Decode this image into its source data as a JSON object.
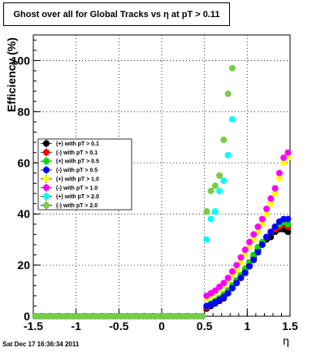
{
  "chart_data": {
    "type": "scatter",
    "title": "Ghost over all for Global Tracks vs η at pT > 0.11",
    "xlabel": "η",
    "ylabel": "Efficiency (%)",
    "xlim": [
      -1.5,
      1.5
    ],
    "ylim": [
      0,
      110
    ],
    "xticks": [
      "-1.5",
      "-1",
      "-0.5",
      "0",
      "0.5",
      "1",
      "1.5"
    ],
    "yticks": [
      "0",
      "20",
      "40",
      "60",
      "80",
      "100"
    ],
    "grid": true,
    "legend_position": "left-middle",
    "series": [
      {
        "name": "(+) with pT > 0.1",
        "color": "#000000",
        "x": [
          -1.475,
          -1.425,
          -1.375,
          -1.325,
          -1.275,
          -1.225,
          -1.175,
          -1.125,
          -1.075,
          -1.025,
          -0.975,
          -0.925,
          -0.875,
          -0.825,
          -0.775,
          -0.725,
          -0.675,
          -0.625,
          -0.575,
          -0.525,
          -0.475,
          -0.425,
          -0.375,
          -0.325,
          -0.275,
          -0.225,
          -0.175,
          -0.125,
          -0.075,
          -0.025,
          0.025,
          0.075,
          0.125,
          0.175,
          0.225,
          0.275,
          0.325,
          0.375,
          0.425,
          0.475,
          0.525,
          0.575,
          0.625,
          0.675,
          0.725,
          0.775,
          0.825,
          0.875,
          0.925,
          0.975,
          1.025,
          1.075,
          1.125,
          1.175,
          1.225,
          1.275,
          1.325,
          1.375,
          1.425,
          1.475
        ],
        "y": [
          0,
          0,
          0,
          0,
          0,
          0,
          0,
          0,
          0,
          0,
          0,
          0,
          0,
          0,
          0,
          0,
          0,
          0,
          0,
          0,
          0,
          0,
          0,
          0,
          0,
          0,
          0,
          0,
          0,
          0,
          0,
          0,
          0,
          0,
          0,
          0,
          0,
          0,
          0,
          0,
          3,
          4,
          5,
          6,
          7,
          9,
          11,
          13,
          15,
          17,
          20,
          23,
          26,
          28,
          30,
          31,
          33,
          34,
          34,
          33
        ]
      },
      {
        "name": "(-) with pT > 0.1",
        "color": "#ff0000",
        "x": [
          -1.475,
          -1.425,
          -1.375,
          -1.325,
          -1.275,
          -1.225,
          -1.175,
          -1.125,
          -1.075,
          -1.025,
          -0.975,
          -0.925,
          -0.875,
          -0.825,
          -0.775,
          -0.725,
          -0.675,
          -0.625,
          -0.575,
          -0.525,
          -0.475,
          -0.425,
          -0.375,
          -0.325,
          -0.275,
          -0.225,
          -0.175,
          -0.125,
          -0.075,
          -0.025,
          0.025,
          0.075,
          0.125,
          0.175,
          0.225,
          0.275,
          0.325,
          0.375,
          0.425,
          0.475,
          0.525,
          0.575,
          0.625,
          0.675,
          0.725,
          0.775,
          0.825,
          0.875,
          0.925,
          0.975,
          1.025,
          1.075,
          1.125,
          1.175,
          1.225,
          1.275,
          1.325,
          1.375,
          1.425,
          1.475
        ],
        "y": [
          0,
          0,
          0,
          0,
          0,
          0,
          0,
          0,
          0,
          0,
          0,
          0,
          0,
          0,
          0,
          0,
          0,
          0,
          0,
          0,
          0,
          0,
          0,
          0,
          0,
          0,
          0,
          0,
          0,
          0,
          0,
          0,
          0,
          0,
          0,
          0,
          0,
          0,
          0,
          0,
          3.5,
          4.5,
          5.5,
          6.5,
          8,
          10,
          12,
          14,
          16,
          18,
          21,
          24,
          27,
          29,
          31,
          33,
          34,
          35,
          36,
          35
        ]
      },
      {
        "name": "(+) with pT > 0.5",
        "color": "#00dd00",
        "x": [
          -1.475,
          -1.425,
          -1.375,
          -1.325,
          -1.275,
          -1.225,
          -1.175,
          -1.125,
          -1.075,
          -1.025,
          -0.975,
          -0.925,
          -0.875,
          -0.825,
          -0.775,
          -0.725,
          -0.675,
          -0.625,
          -0.575,
          -0.525,
          -0.475,
          -0.425,
          -0.375,
          -0.325,
          -0.275,
          -0.225,
          -0.175,
          -0.125,
          -0.075,
          -0.025,
          0.025,
          0.075,
          0.125,
          0.175,
          0.225,
          0.275,
          0.325,
          0.375,
          0.425,
          0.475,
          0.525,
          0.575,
          0.625,
          0.675,
          0.725,
          0.775,
          0.825,
          0.875,
          0.925,
          0.975,
          1.025,
          1.075,
          1.125,
          1.175,
          1.225,
          1.275,
          1.325,
          1.375,
          1.425,
          1.475
        ],
        "y": [
          0,
          0,
          0,
          0,
          0,
          0,
          0,
          0,
          0,
          0,
          0,
          0,
          0,
          0,
          0,
          0,
          0,
          0,
          0,
          0,
          0,
          0,
          0,
          0,
          0,
          0,
          0,
          0,
          0,
          0,
          0,
          0,
          0,
          0,
          0,
          0,
          0,
          0,
          0,
          0,
          4,
          5,
          6,
          7,
          8.5,
          10,
          12,
          14,
          16,
          18.5,
          21,
          24,
          27,
          29,
          31,
          33,
          35,
          36,
          37,
          36
        ]
      },
      {
        "name": "(-) with pT > 0.5",
        "color": "#0000ff",
        "x": [
          -1.475,
          -1.425,
          -1.375,
          -1.325,
          -1.275,
          -1.225,
          -1.175,
          -1.125,
          -1.075,
          -1.025,
          -0.975,
          -0.925,
          -0.875,
          -0.825,
          -0.775,
          -0.725,
          -0.675,
          -0.625,
          -0.575,
          -0.525,
          -0.475,
          -0.425,
          -0.375,
          -0.325,
          -0.275,
          -0.225,
          -0.175,
          -0.125,
          -0.075,
          -0.025,
          0.025,
          0.075,
          0.125,
          0.175,
          0.225,
          0.275,
          0.325,
          0.375,
          0.425,
          0.475,
          0.525,
          0.575,
          0.625,
          0.675,
          0.725,
          0.775,
          0.825,
          0.875,
          0.925,
          0.975,
          1.025,
          1.075,
          1.125,
          1.175,
          1.225,
          1.275,
          1.325,
          1.375,
          1.425,
          1.475
        ],
        "y": [
          0,
          0,
          0,
          0,
          0,
          0,
          0,
          0,
          0,
          0,
          0,
          0,
          0,
          0,
          0,
          0,
          0,
          0,
          0,
          0,
          0,
          0,
          0,
          0,
          0,
          0,
          0,
          0,
          0,
          0,
          0,
          0,
          0,
          0,
          0,
          0,
          0,
          0,
          0,
          0,
          4,
          4.5,
          5.5,
          6.5,
          7.5,
          9,
          11,
          13,
          15,
          17,
          19.5,
          22,
          25,
          28,
          31,
          33,
          35,
          37,
          38,
          38
        ]
      },
      {
        "name": "(+) with pT > 1.0",
        "color": "#ffff00",
        "x": [
          -1.475,
          -1.425,
          -1.375,
          -1.325,
          -1.275,
          -1.225,
          -1.175,
          -1.125,
          -1.075,
          -1.025,
          -0.975,
          -0.925,
          -0.875,
          -0.825,
          -0.775,
          -0.725,
          -0.675,
          -0.625,
          -0.575,
          -0.525,
          -0.475,
          -0.425,
          -0.375,
          -0.325,
          -0.275,
          -0.225,
          -0.175,
          -0.125,
          -0.075,
          -0.025,
          0.025,
          0.075,
          0.125,
          0.175,
          0.225,
          0.275,
          0.325,
          0.375,
          0.425,
          0.475,
          0.525,
          0.575,
          0.625,
          0.675,
          0.725,
          0.775,
          0.825,
          0.875,
          0.925,
          0.975,
          1.025,
          1.075,
          1.125,
          1.175,
          1.225,
          1.275,
          1.325,
          1.375,
          1.425,
          1.475
        ],
        "y": [
          0,
          0,
          0,
          0,
          0,
          0,
          0,
          0,
          0,
          0,
          0,
          0,
          0,
          0,
          0,
          0,
          0,
          0,
          0,
          0,
          0,
          0,
          0,
          0,
          0,
          0,
          0,
          0,
          0,
          0,
          0,
          0,
          0,
          0,
          0,
          0,
          0,
          0,
          0,
          0,
          7,
          8,
          9,
          10.5,
          12,
          14,
          16,
          18,
          21,
          24,
          27,
          30,
          33,
          36,
          40,
          44,
          48,
          54,
          60,
          62
        ]
      },
      {
        "name": "(-) with pT > 1.0",
        "color": "#ff00ff",
        "x": [
          -1.475,
          -1.425,
          -1.375,
          -1.325,
          -1.275,
          -1.225,
          -1.175,
          -1.125,
          -1.075,
          -1.025,
          -0.975,
          -0.925,
          -0.875,
          -0.825,
          -0.775,
          -0.725,
          -0.675,
          -0.625,
          -0.575,
          -0.525,
          -0.475,
          -0.425,
          -0.375,
          -0.325,
          -0.275,
          -0.225,
          -0.175,
          -0.125,
          -0.075,
          -0.025,
          0.025,
          0.075,
          0.125,
          0.175,
          0.225,
          0.275,
          0.325,
          0.375,
          0.425,
          0.475,
          0.525,
          0.575,
          0.625,
          0.675,
          0.725,
          0.775,
          0.825,
          0.875,
          0.925,
          0.975,
          1.025,
          1.075,
          1.125,
          1.175,
          1.225,
          1.275,
          1.325,
          1.375,
          1.425,
          1.475
        ],
        "y": [
          0,
          0,
          0,
          0,
          0,
          0,
          0,
          0,
          0,
          0,
          0,
          0,
          0,
          0,
          0,
          0,
          0,
          0,
          0,
          0,
          0,
          0,
          0,
          0,
          0,
          0,
          0,
          0,
          0,
          0,
          0,
          0,
          0,
          0,
          0,
          0,
          0,
          0,
          0,
          0,
          8,
          9,
          10,
          11.5,
          13,
          15,
          17.5,
          20,
          23,
          26,
          29,
          32,
          35,
          38,
          42,
          46,
          50,
          56,
          62,
          64
        ]
      },
      {
        "name": "(+) with pT > 2.0",
        "color": "#00ffff",
        "x": [
          -1.475,
          -1.425,
          -1.375,
          -1.325,
          -1.275,
          -1.225,
          -1.175,
          -1.125,
          -1.075,
          -1.025,
          -0.975,
          -0.925,
          -0.875,
          -0.825,
          -0.775,
          -0.725,
          -0.675,
          -0.625,
          -0.575,
          -0.525,
          -0.475,
          -0.425,
          -0.375,
          -0.325,
          -0.275,
          -0.225,
          -0.175,
          -0.125,
          -0.075,
          -0.025,
          0.025,
          0.075,
          0.125,
          0.175,
          0.225,
          0.275,
          0.325,
          0.375,
          0.425,
          0.475,
          0.525,
          0.575,
          0.625,
          0.675,
          0.725,
          0.775,
          0.825
        ],
        "y": [
          0,
          0,
          0,
          0,
          0,
          0,
          0,
          0,
          0,
          0,
          0,
          0,
          0,
          0,
          0,
          0,
          0,
          0,
          0,
          0,
          0,
          0,
          0,
          0,
          0,
          0,
          0,
          0,
          0,
          0,
          0,
          0,
          0,
          0,
          0,
          0,
          0,
          0,
          0,
          0,
          30,
          38,
          41,
          49,
          53,
          63,
          77
        ]
      },
      {
        "name": "(-) with pT > 2.0",
        "color": "#77cc44",
        "x": [
          -1.475,
          -1.425,
          -1.375,
          -1.325,
          -1.275,
          -1.225,
          -1.175,
          -1.125,
          -1.075,
          -1.025,
          -0.975,
          -0.925,
          -0.875,
          -0.825,
          -0.775,
          -0.725,
          -0.675,
          -0.625,
          -0.575,
          -0.525,
          -0.475,
          -0.425,
          -0.375,
          -0.325,
          -0.275,
          -0.225,
          -0.175,
          -0.125,
          -0.075,
          -0.025,
          0.025,
          0.075,
          0.125,
          0.175,
          0.225,
          0.275,
          0.325,
          0.375,
          0.425,
          0.475,
          0.525,
          0.575,
          0.625,
          0.675,
          0.725,
          0.775,
          0.825
        ],
        "y": [
          0,
          0,
          0,
          0,
          0,
          0,
          0,
          0,
          0,
          0,
          0,
          0,
          0,
          0,
          0,
          0,
          0,
          0,
          0,
          0,
          0,
          0,
          0,
          0,
          0,
          0,
          0,
          0,
          0,
          0,
          0,
          0,
          0,
          0,
          0,
          0,
          0,
          0,
          0,
          0,
          41,
          49,
          51,
          55,
          69,
          87,
          97
        ]
      }
    ]
  },
  "footer": {
    "timestamp": "Sat Dec 17 16:36:34 2011"
  }
}
